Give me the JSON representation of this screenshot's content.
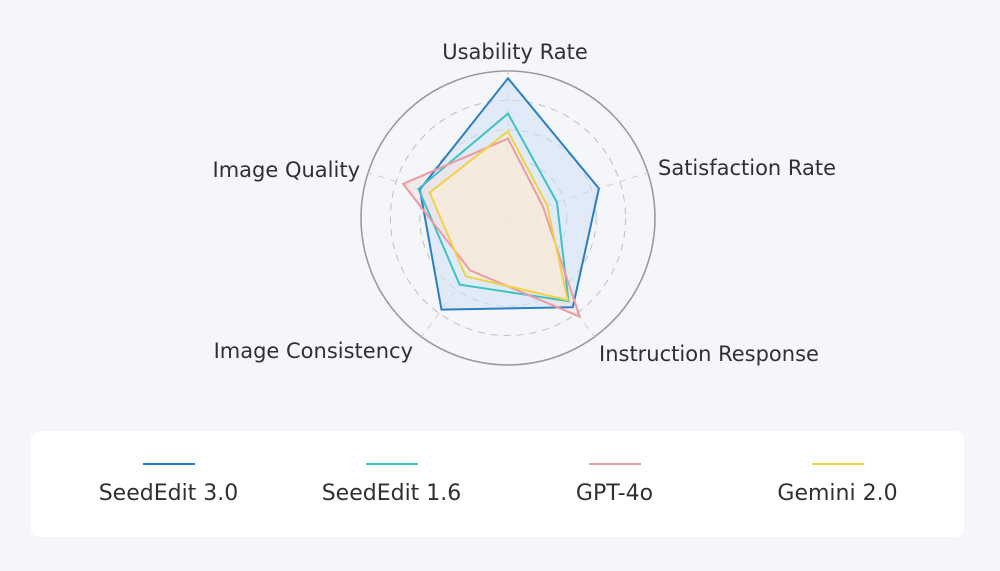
{
  "chart_data": {
    "type": "radar",
    "title": "",
    "axes": [
      "Usability Rate",
      "Satisfaction Rate",
      "Instruction Response",
      "Image Consistency",
      "Image Quality"
    ],
    "range": [
      0,
      100
    ],
    "grid": "dashed concentric circles",
    "legend_position": "bottom",
    "series": [
      {
        "name": "SeedEdit 3.0",
        "color": "#2a7fc4",
        "fill": "#d2e2f7",
        "values": [
          95,
          65,
          75,
          77,
          63
        ]
      },
      {
        "name": "SeedEdit 1.6",
        "color": "#3fc2c4",
        "fill": "none",
        "values": [
          71,
          35,
          70,
          56,
          64
        ]
      },
      {
        "name": "GPT-4o",
        "color": "#ee9aa2",
        "fill": "#f6dde0",
        "values": [
          54,
          25,
          83,
          44,
          75
        ]
      },
      {
        "name": "Gemini 2.0",
        "color": "#efd24a",
        "fill": "#fbf1d2",
        "values": [
          59,
          28,
          69,
          49,
          56
        ]
      }
    ]
  }
}
